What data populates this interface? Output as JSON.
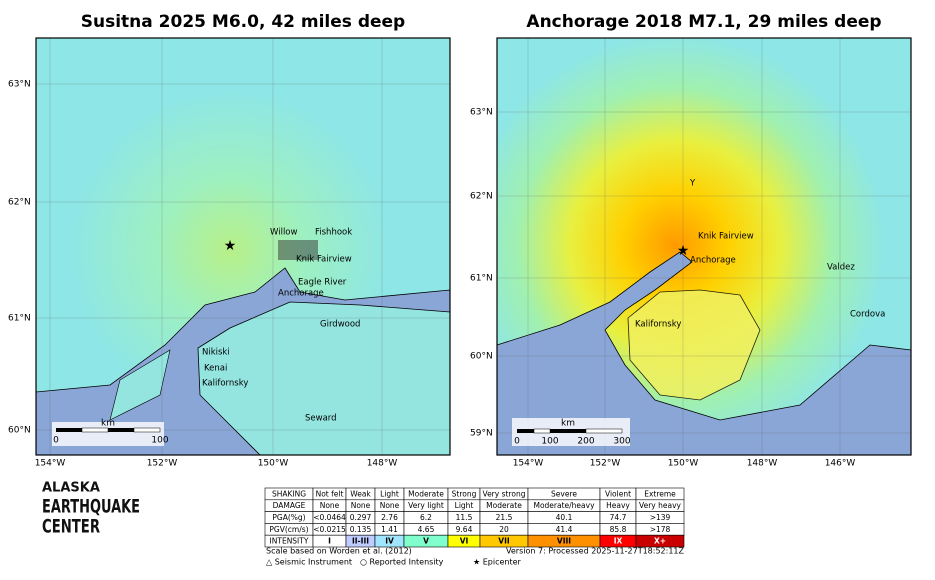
{
  "maps": [
    {
      "title": "Susitna 2025 M6.0, 42 miles deep",
      "lat_labels": [
        "63°N",
        "62°N",
        "61°N",
        "60°N"
      ],
      "lon_labels": [
        "154°W",
        "152°W",
        "150°W",
        "148°W"
      ],
      "places": [
        "Willow",
        "Fishhook",
        "Knik Fairview",
        "Eagle River",
        "Anchorage",
        "Girdwood",
        "Nikiski",
        "Kenai",
        "Kalifornsky",
        "Seward"
      ],
      "scale_unit": "km",
      "scale_ticks": [
        "0",
        "100"
      ]
    },
    {
      "title": "Anchorage 2018 M7.1, 29 miles deep",
      "lat_labels": [
        "63°N",
        "62°N",
        "61°N",
        "60°N",
        "59°N"
      ],
      "lon_labels": [
        "154°W",
        "152°W",
        "150°W",
        "148°W",
        "146°W"
      ],
      "places": [
        "Y",
        "Knik Fairview",
        "Anchorage",
        "Valdez",
        "Cordova",
        "Kalifornsky"
      ],
      "scale_unit": "km",
      "scale_ticks": [
        "0",
        "100",
        "200",
        "300"
      ]
    }
  ],
  "logo": [
    "ALASKA",
    "EARTHQUAKE",
    "CENTER"
  ],
  "legend": {
    "row_labels": [
      "SHAKING",
      "DAMAGE",
      "PGA(%g)",
      "PGV(cm/s)",
      "INTENSITY"
    ],
    "shaking": [
      "Not felt",
      "Weak",
      "Light",
      "Moderate",
      "Strong",
      "Very strong",
      "Severe",
      "Violent",
      "Extreme"
    ],
    "damage": [
      "None",
      "None",
      "None",
      "Very light",
      "Light",
      "Moderate",
      "Moderate/heavy",
      "Heavy",
      "Very heavy"
    ],
    "pga": [
      "<0.0464",
      "0.297",
      "2.76",
      "6.2",
      "11.5",
      "21.5",
      "40.1",
      "74.7",
      ">139"
    ],
    "pgv": [
      "<0.0215",
      "0.135",
      "1.41",
      "4.65",
      "9.64",
      "20",
      "41.4",
      "85.8",
      ">178"
    ],
    "intensity": [
      "I",
      "II-III",
      "IV",
      "V",
      "VI",
      "VII",
      "VIII",
      "IX",
      "X+"
    ],
    "intensity_colors": [
      "#ffffff",
      "#bfccff",
      "#a0e6ff",
      "#80ffcc",
      "#ffff00",
      "#ffc800",
      "#ff9100",
      "#ff0000",
      "#c80000"
    ],
    "note": "Scale based on Worden et al. (2012)",
    "version": "Version 7: Processed 2025-11-27T18:52:11Z",
    "symbols": [
      "△ Seismic Instrument",
      "○ Reported Intensity",
      "★ Epicenter"
    ]
  }
}
